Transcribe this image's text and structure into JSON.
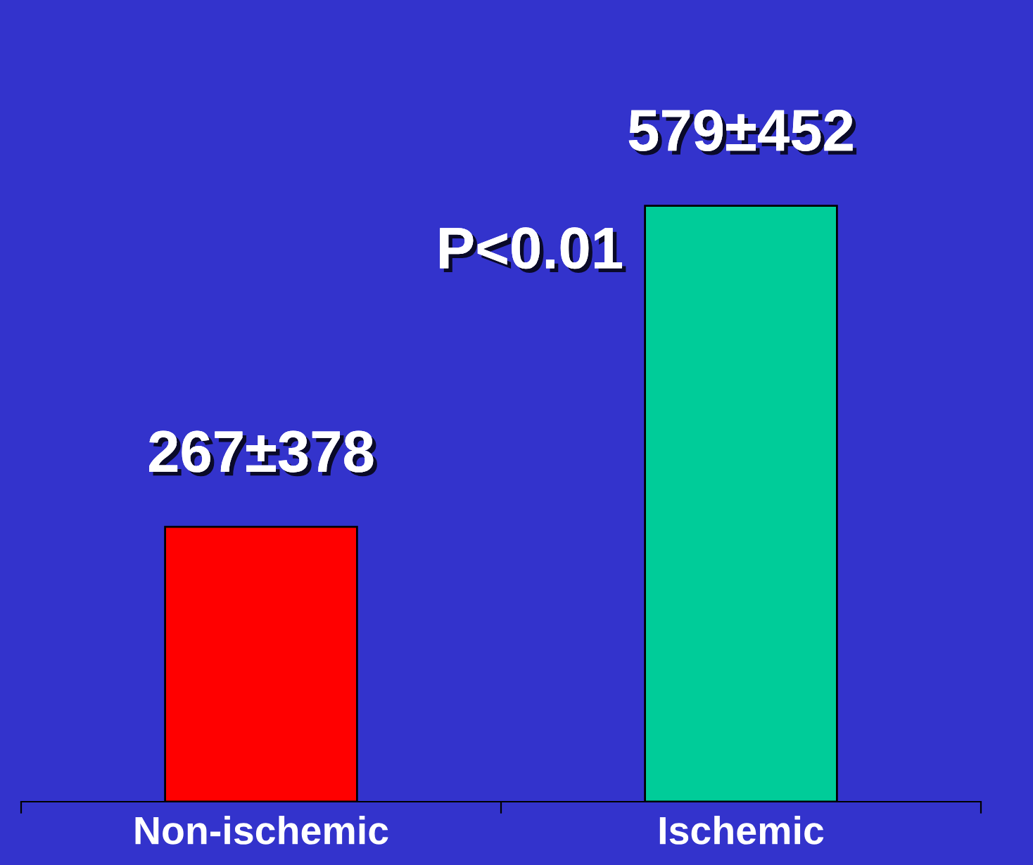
{
  "chart_data": {
    "type": "bar",
    "categories": [
      "Non-ischemic",
      "Ischemic"
    ],
    "values": [
      267,
      579
    ],
    "colors": [
      "#ff0000",
      "#00cc99"
    ],
    "value_labels": [
      "267±378",
      "579±452"
    ],
    "annotations": [
      "P<0.01"
    ],
    "grid": false,
    "legend": false
  }
}
